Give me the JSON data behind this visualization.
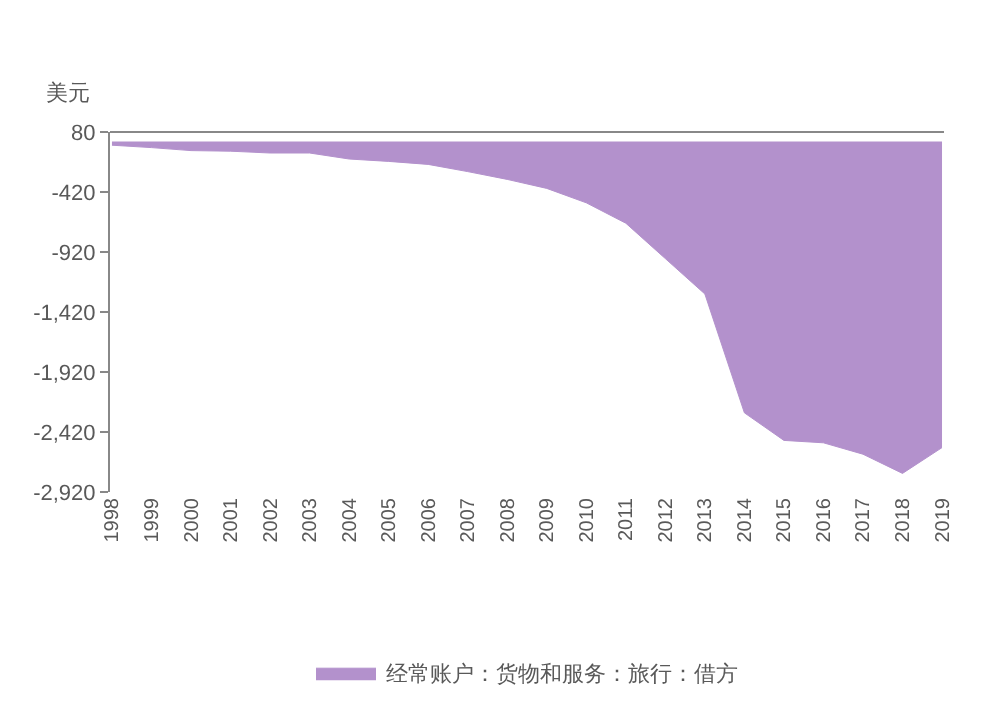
{
  "chart_data": {
    "type": "area",
    "ylabel": "美元",
    "categories": [
      "1998",
      "1999",
      "2000",
      "2001",
      "2002",
      "2003",
      "2004",
      "2005",
      "2006",
      "2007",
      "2008",
      "2009",
      "2010",
      "2011",
      "2012",
      "2013",
      "2014",
      "2015",
      "2016",
      "2017",
      "2018",
      "2019"
    ],
    "series": [
      {
        "name": "经常账户：货物和服务：旅行：借方",
        "color": "#b391cc",
        "values": [
          -30,
          -50,
          -75,
          -80,
          -95,
          -95,
          -145,
          -165,
          -190,
          -250,
          -315,
          -390,
          -510,
          -680,
          -975,
          -1270,
          -2260,
          -2490,
          -2510,
          -2605,
          -2765,
          -2550
        ]
      }
    ],
    "ylim": [
      -2920,
      80
    ],
    "yticks": [
      80,
      -420,
      -920,
      {
        "value": -1420,
        "label": "-1,420"
      },
      {
        "value": -1920,
        "label": "-1,920"
      },
      {
        "value": -2420,
        "label": "-2,420"
      },
      {
        "value": -2920,
        "label": "-2,920"
      }
    ],
    "grid": false,
    "legend": "bottom"
  }
}
